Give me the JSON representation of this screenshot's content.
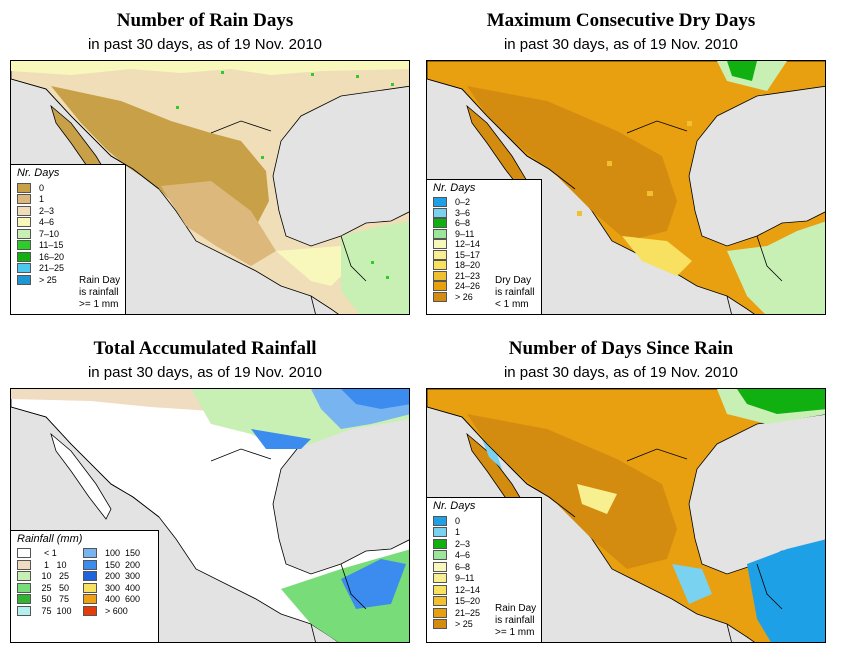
{
  "panels": [
    {
      "id": "rain-days",
      "title": "Number of Rain Days",
      "subtitle": "in past 30 days, as of  19 Nov. 2010",
      "legend_title": "Nr. Days",
      "legend_items": [
        {
          "label": "0",
          "color": "#c8a048"
        },
        {
          "label": "1",
          "color": "#dcb87c"
        },
        {
          "label": "2–3",
          "color": "#f0deb8"
        },
        {
          "label": "4–6",
          "color": "#f8f8bc"
        },
        {
          "label": "7–10",
          "color": "#c8f0b4"
        },
        {
          "label": "11–15",
          "color": "#2ecc28"
        },
        {
          "label": "16–20",
          "color": "#10b010"
        },
        {
          "label": "21–25",
          "color": "#4cc8f0"
        },
        {
          "label": "> 25",
          "color": "#1e96d2"
        }
      ],
      "legend_note": [
        "Rain Day",
        "is rainfall",
        ">= 1 mm"
      ]
    },
    {
      "id": "dry-days",
      "title": "Maximum Consecutive Dry Days",
      "subtitle": "in past 30 days, as of  19 Nov. 2010",
      "legend_title": "Nr. Days",
      "legend_items": [
        {
          "label": "0–2",
          "color": "#1ea0e6"
        },
        {
          "label": "3–6",
          "color": "#78d2f0"
        },
        {
          "label": "6–8",
          "color": "#10b010"
        },
        {
          "label": "9–11",
          "color": "#9ce69c"
        },
        {
          "label": "12–14",
          "color": "#f8f8bc"
        },
        {
          "label": "15–17",
          "color": "#f8f090"
        },
        {
          "label": "18–20",
          "color": "#f8e060"
        },
        {
          "label": "21–23",
          "color": "#f0c030"
        },
        {
          "label": "24–26",
          "color": "#e8a010"
        },
        {
          "label": "> 26",
          "color": "#d48c10"
        }
      ],
      "legend_note": [
        "Dry Day",
        "is rainfall",
        "< 1 mm"
      ]
    },
    {
      "id": "rainfall",
      "title": "Total Accumulated Rainfall",
      "subtitle": "in past 30 days, as of  19 Nov. 2010",
      "legend_title": "Rainfall (mm)",
      "legend_items": [
        {
          "label": "  < 1",
          "color": "#ffffff"
        },
        {
          "label": "100  150",
          "color": "#78b4f0"
        },
        {
          "label": "  1   10",
          "color": "#f0dcc0"
        },
        {
          "label": "150  200",
          "color": "#3c8cf0"
        },
        {
          "label": " 10   25",
          "color": "#c8f0b4"
        },
        {
          "label": "200  300",
          "color": "#1e64dc"
        },
        {
          "label": " 25   50",
          "color": "#78dc78"
        },
        {
          "label": "300  400",
          "color": "#f8e060"
        },
        {
          "label": " 50   75",
          "color": "#32b432"
        },
        {
          "label": "400  600",
          "color": "#f0a010"
        },
        {
          "label": " 75  100",
          "color": "#b4f0f0"
        },
        {
          "label": "> 600",
          "color": "#e63c0a"
        }
      ]
    },
    {
      "id": "days-since",
      "title": "Number of Days Since Rain",
      "subtitle": "in past 30 days, as of  19 Nov. 2010",
      "legend_title": "Nr. Days",
      "legend_items": [
        {
          "label": "0",
          "color": "#1ea0e6"
        },
        {
          "label": "1",
          "color": "#78d2f0"
        },
        {
          "label": "2–3",
          "color": "#10b010"
        },
        {
          "label": "4–6",
          "color": "#9ce69c"
        },
        {
          "label": "6–8",
          "color": "#f8f8bc"
        },
        {
          "label": "9–11",
          "color": "#f8f090"
        },
        {
          "label": "12–14",
          "color": "#f8e060"
        },
        {
          "label": "15–20",
          "color": "#f0c030"
        },
        {
          "label": "21–25",
          "color": "#e8a010"
        },
        {
          "label": "> 25",
          "color": "#d48c10"
        }
      ],
      "legend_note": [
        "Rain Day",
        "is rainfall",
        ">= 1 mm"
      ]
    }
  ]
}
